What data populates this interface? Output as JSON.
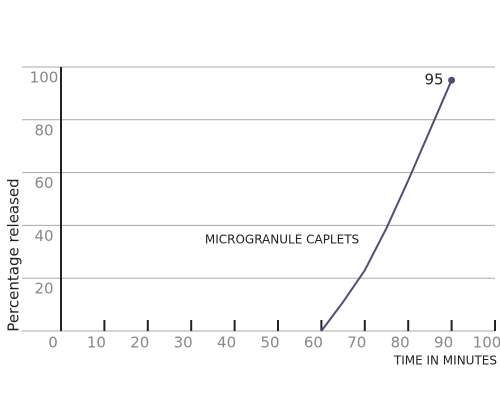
{
  "chart_data": {
    "type": "line",
    "y_label": "Percentage released",
    "x_label": "TIME IN MINUTES",
    "annotation": "MICROGRANULE CAPLETS",
    "x": [
      60,
      65,
      70,
      75,
      80,
      85,
      90
    ],
    "series": [
      {
        "name": "MICROGRANULE CAPLETS",
        "color": "#574a75",
        "values": [
          0,
          11,
          23,
          39,
          57,
          76,
          95
        ]
      }
    ],
    "xlim": [
      0,
      100
    ],
    "xticks": [
      0,
      10,
      20,
      30,
      40,
      50,
      60,
      70,
      80,
      90,
      100
    ],
    "ylim": [
      0,
      100
    ],
    "yticks": [
      20,
      40,
      60,
      80,
      100
    ],
    "grid": true
  }
}
